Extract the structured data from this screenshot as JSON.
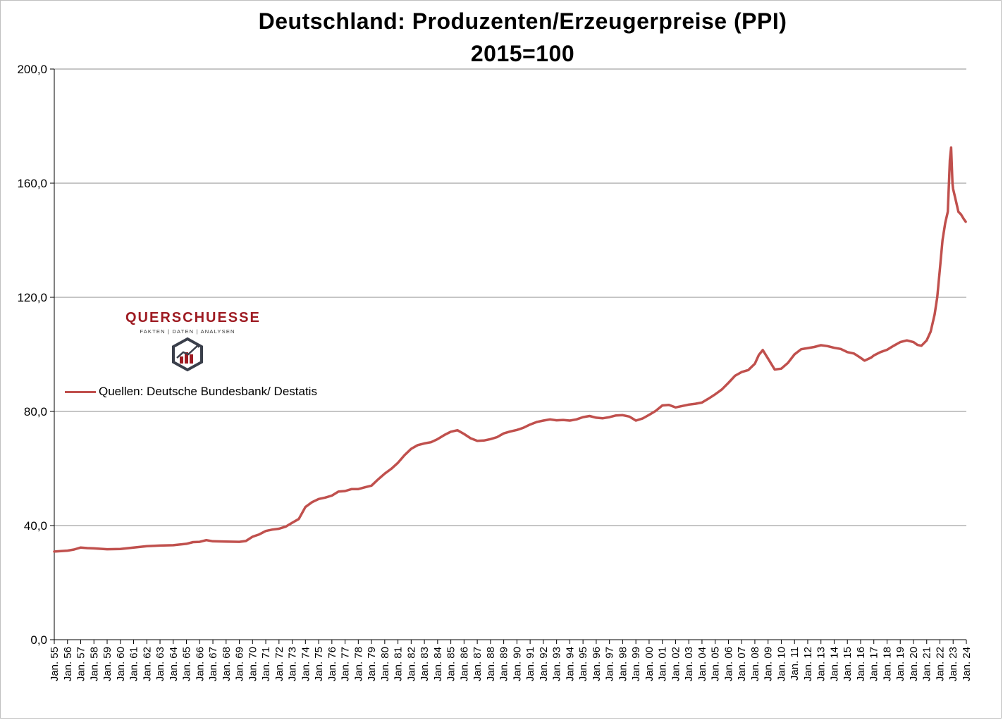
{
  "chart_data": {
    "type": "line",
    "title": "Deutschland: Produzenten/Erzeugerpreise (PPI)",
    "subtitle": "2015=100",
    "ylim": [
      0,
      200
    ],
    "yticks": [
      "0,0",
      "40,0",
      "80,0",
      "120,0",
      "160,0",
      "200,0"
    ],
    "xticks": [
      "Jan. 55",
      "Jan. 56",
      "Jan. 57",
      "Jan. 58",
      "Jan. 59",
      "Jan. 60",
      "Jan. 61",
      "Jan. 62",
      "Jan. 63",
      "Jan. 64",
      "Jan. 65",
      "Jan. 66",
      "Jan. 67",
      "Jan. 68",
      "Jan. 69",
      "Jan. 70",
      "Jan. 71",
      "Jan. 72",
      "Jan. 73",
      "Jan. 74",
      "Jan. 75",
      "Jan. 76",
      "Jan. 77",
      "Jan. 78",
      "Jan. 79",
      "Jan. 80",
      "Jan. 81",
      "Jan. 82",
      "Jan. 83",
      "Jan. 84",
      "Jan. 85",
      "Jan. 86",
      "Jan. 87",
      "Jan. 88",
      "Jan. 89",
      "Jan. 90",
      "Jan. 91",
      "Jan. 92",
      "Jan. 93",
      "Jan. 94",
      "Jan. 95",
      "Jan. 96",
      "Jan. 97",
      "Jan. 98",
      "Jan. 99",
      "Jan. 00",
      "Jan. 01",
      "Jan. 02",
      "Jan. 03",
      "Jan. 04",
      "Jan. 05",
      "Jan. 06",
      "Jan. 07",
      "Jan. 08",
      "Jan. 09",
      "Jan. 10",
      "Jan. 11",
      "Jan. 12",
      "Jan. 13",
      "Jan. 14",
      "Jan. 15",
      "Jan. 16",
      "Jan. 17",
      "Jan. 18",
      "Jan. 19",
      "Jan. 20",
      "Jan. 21",
      "Jan. 22",
      "Jan. 23",
      "Jan. 24"
    ],
    "grid": true,
    "legend_position": "left",
    "series": [
      {
        "name": "Quellen: Deutsche Bundesbank/ Destatis",
        "color": "#c0504d",
        "points": [
          [
            1955.0,
            30.9
          ],
          [
            1956.0,
            31.2
          ],
          [
            1956.5,
            31.6
          ],
          [
            1957.0,
            32.3
          ],
          [
            1957.5,
            32.1
          ],
          [
            1958.0,
            32.0
          ],
          [
            1959.0,
            31.7
          ],
          [
            1960.0,
            31.8
          ],
          [
            1961.0,
            32.3
          ],
          [
            1962.0,
            32.8
          ],
          [
            1963.0,
            33.0
          ],
          [
            1964.0,
            33.1
          ],
          [
            1965.0,
            33.6
          ],
          [
            1965.5,
            34.2
          ],
          [
            1966.0,
            34.3
          ],
          [
            1966.5,
            34.9
          ],
          [
            1967.0,
            34.5
          ],
          [
            1968.0,
            34.4
          ],
          [
            1969.0,
            34.3
          ],
          [
            1969.5,
            34.6
          ],
          [
            1970.0,
            36.1
          ],
          [
            1970.5,
            36.9
          ],
          [
            1971.0,
            38.1
          ],
          [
            1971.5,
            38.6
          ],
          [
            1972.0,
            38.9
          ],
          [
            1972.5,
            39.6
          ],
          [
            1973.0,
            41.0
          ],
          [
            1973.5,
            42.3
          ],
          [
            1974.0,
            46.5
          ],
          [
            1974.5,
            48.2
          ],
          [
            1975.0,
            49.3
          ],
          [
            1975.5,
            49.8
          ],
          [
            1976.0,
            50.5
          ],
          [
            1976.5,
            51.9
          ],
          [
            1977.0,
            52.1
          ],
          [
            1977.5,
            52.8
          ],
          [
            1978.0,
            52.8
          ],
          [
            1978.5,
            53.4
          ],
          [
            1979.0,
            54.0
          ],
          [
            1979.5,
            56.2
          ],
          [
            1980.0,
            58.2
          ],
          [
            1980.5,
            59.9
          ],
          [
            1981.0,
            62.0
          ],
          [
            1981.5,
            64.7
          ],
          [
            1982.0,
            66.9
          ],
          [
            1982.5,
            68.2
          ],
          [
            1983.0,
            68.8
          ],
          [
            1983.5,
            69.2
          ],
          [
            1984.0,
            70.3
          ],
          [
            1984.5,
            71.7
          ],
          [
            1985.0,
            72.9
          ],
          [
            1985.5,
            73.4
          ],
          [
            1986.0,
            72.1
          ],
          [
            1986.5,
            70.6
          ],
          [
            1987.0,
            69.7
          ],
          [
            1987.5,
            69.8
          ],
          [
            1988.0,
            70.3
          ],
          [
            1988.5,
            71.0
          ],
          [
            1989.0,
            72.3
          ],
          [
            1989.5,
            73.0
          ],
          [
            1990.0,
            73.5
          ],
          [
            1990.5,
            74.3
          ],
          [
            1991.0,
            75.4
          ],
          [
            1991.5,
            76.3
          ],
          [
            1992.0,
            76.8
          ],
          [
            1992.5,
            77.2
          ],
          [
            1993.0,
            76.9
          ],
          [
            1993.5,
            77.0
          ],
          [
            1994.0,
            76.8
          ],
          [
            1994.5,
            77.2
          ],
          [
            1995.0,
            78.0
          ],
          [
            1995.5,
            78.4
          ],
          [
            1996.0,
            77.8
          ],
          [
            1996.5,
            77.6
          ],
          [
            1997.0,
            78.0
          ],
          [
            1997.5,
            78.6
          ],
          [
            1998.0,
            78.7
          ],
          [
            1998.5,
            78.2
          ],
          [
            1999.0,
            76.8
          ],
          [
            1999.5,
            77.5
          ],
          [
            2000.0,
            78.8
          ],
          [
            2000.5,
            80.2
          ],
          [
            2001.0,
            82.1
          ],
          [
            2001.5,
            82.3
          ],
          [
            2002.0,
            81.4
          ],
          [
            2002.5,
            81.9
          ],
          [
            2003.0,
            82.4
          ],
          [
            2003.5,
            82.7
          ],
          [
            2004.0,
            83.1
          ],
          [
            2004.5,
            84.5
          ],
          [
            2005.0,
            86.0
          ],
          [
            2005.5,
            87.7
          ],
          [
            2006.0,
            90.0
          ],
          [
            2006.5,
            92.5
          ],
          [
            2007.0,
            93.8
          ],
          [
            2007.5,
            94.5
          ],
          [
            2008.0,
            96.7
          ],
          [
            2008.3,
            99.8
          ],
          [
            2008.6,
            101.5
          ],
          [
            2009.0,
            98.5
          ],
          [
            2009.5,
            94.7
          ],
          [
            2010.0,
            95.0
          ],
          [
            2010.5,
            97.0
          ],
          [
            2011.0,
            100.0
          ],
          [
            2011.5,
            101.8
          ],
          [
            2012.0,
            102.2
          ],
          [
            2012.5,
            102.6
          ],
          [
            2013.0,
            103.2
          ],
          [
            2013.5,
            102.9
          ],
          [
            2014.0,
            102.3
          ],
          [
            2014.5,
            101.9
          ],
          [
            2015.0,
            100.8
          ],
          [
            2015.5,
            100.3
          ],
          [
            2016.0,
            98.8
          ],
          [
            2016.3,
            97.8
          ],
          [
            2016.8,
            98.9
          ],
          [
            2017.0,
            99.6
          ],
          [
            2017.5,
            100.8
          ],
          [
            2018.0,
            101.6
          ],
          [
            2018.5,
            103.0
          ],
          [
            2019.0,
            104.3
          ],
          [
            2019.5,
            104.9
          ],
          [
            2020.0,
            104.3
          ],
          [
            2020.3,
            103.3
          ],
          [
            2020.6,
            103.0
          ],
          [
            2021.0,
            104.9
          ],
          [
            2021.3,
            108.0
          ],
          [
            2021.6,
            114.0
          ],
          [
            2021.8,
            120.0
          ],
          [
            2022.0,
            130.0
          ],
          [
            2022.2,
            140.0
          ],
          [
            2022.4,
            146.0
          ],
          [
            2022.6,
            150.0
          ],
          [
            2022.75,
            168.0
          ],
          [
            2022.85,
            172.5
          ],
          [
            2022.95,
            160.0
          ],
          [
            2023.0,
            158.0
          ],
          [
            2023.2,
            154.0
          ],
          [
            2023.4,
            150.0
          ],
          [
            2023.6,
            149.0
          ],
          [
            2023.8,
            147.5
          ],
          [
            2023.95,
            146.5
          ]
        ]
      }
    ]
  },
  "logo": {
    "name": "QUERSCHUESSE",
    "tagline": "FAKTEN | DATEN | ANALYSEN"
  }
}
